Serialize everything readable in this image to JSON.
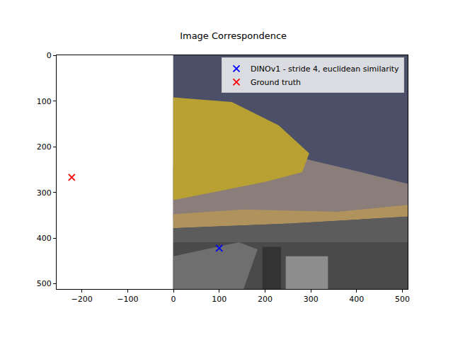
{
  "chart_data": {
    "type": "scatter",
    "title": "Image Correspondence",
    "xlim": [
      -255,
      511.5
    ],
    "ylim": [
      511.5,
      -0.5
    ],
    "xticks": [
      {
        "value": -200,
        "label": "−200"
      },
      {
        "value": -100,
        "label": "−100"
      },
      0,
      100,
      200,
      300,
      400,
      500
    ],
    "yticks": [
      0,
      100,
      200,
      300,
      400,
      500
    ],
    "image_extent": {
      "x": [
        -0.5,
        511.5
      ],
      "y": [
        511.5,
        -0.5
      ]
    },
    "legend": "upper right",
    "series": [
      {
        "name": "DINOv1 - stride 4, euclidean similarity",
        "color": "blue",
        "marker": "x",
        "x": [
          100
        ],
        "y": [
          422
        ]
      },
      {
        "name": "Ground truth",
        "color": "red",
        "marker": "x",
        "x": [
          -222
        ],
        "y": [
          267
        ]
      }
    ]
  }
}
